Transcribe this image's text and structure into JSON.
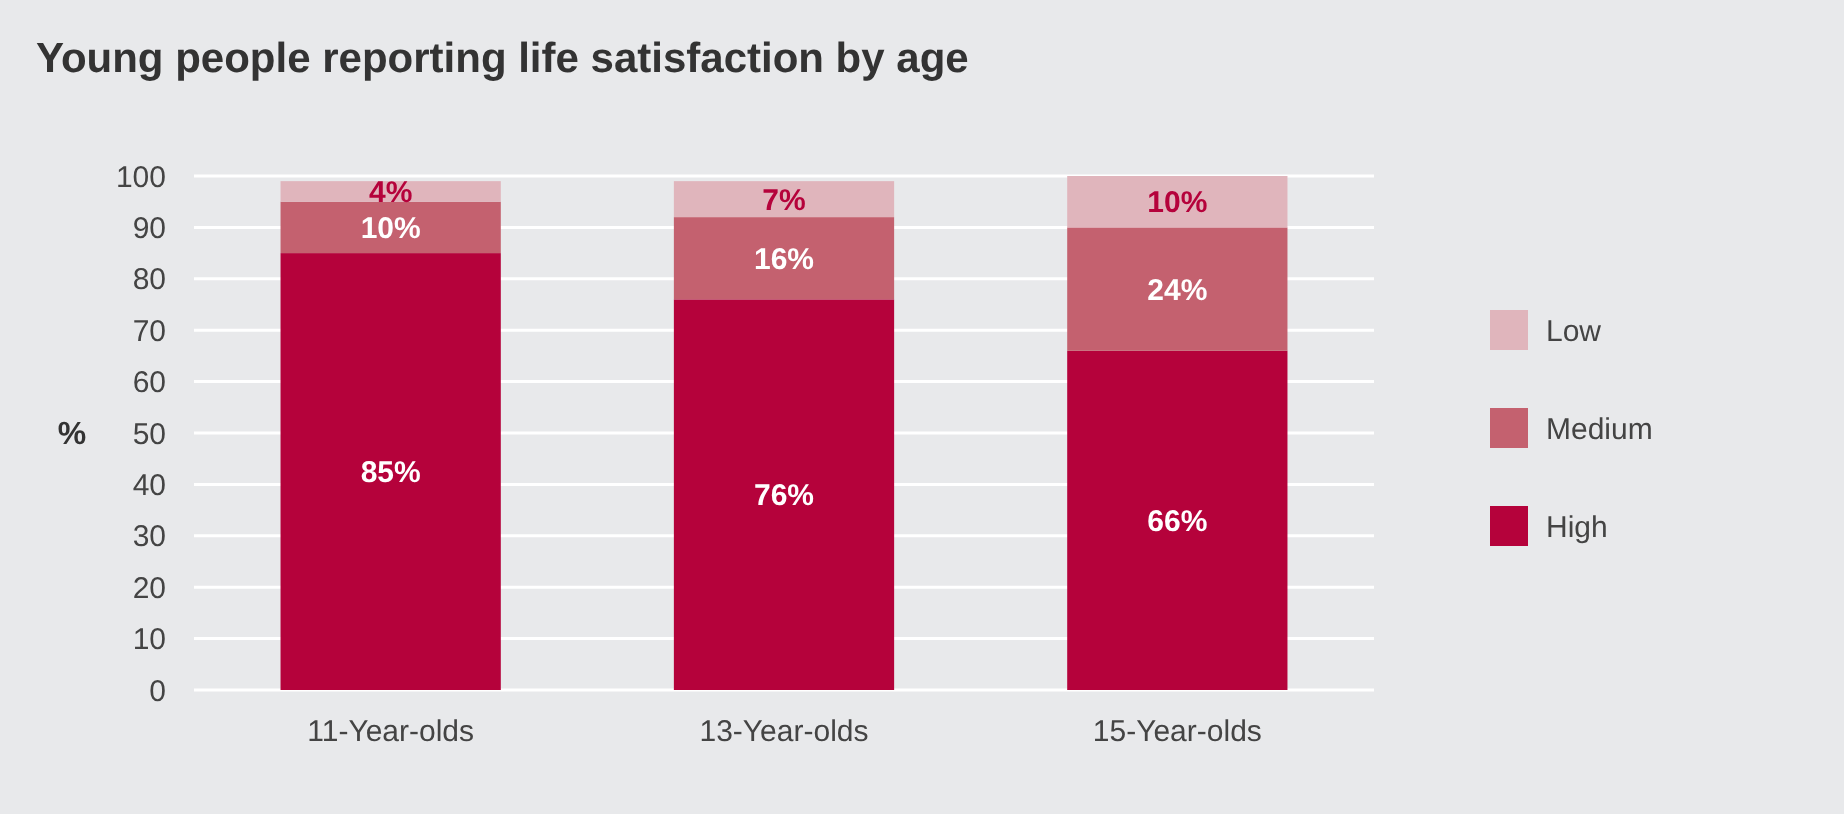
{
  "chart_data": {
    "type": "bar",
    "title": "Young people reporting life satisfaction by age",
    "ylabel": "%",
    "categories": [
      "11-Year-olds",
      "13-Year-olds",
      "15-Year-olds"
    ],
    "stacked": true,
    "series": [
      {
        "name": "High",
        "color": "#b5023b",
        "values": [
          85,
          76,
          66
        ],
        "value_labels": [
          "85%",
          "76%",
          "66%"
        ]
      },
      {
        "name": "Medium",
        "color": "#c4616f",
        "values": [
          10,
          16,
          24
        ],
        "value_labels": [
          "10%",
          "16%",
          "24%"
        ]
      },
      {
        "name": "Low",
        "color": "#e0b5bc",
        "values": [
          4,
          7,
          10
        ],
        "value_labels": [
          "4%",
          "7%",
          "10%"
        ]
      }
    ],
    "ylim": [
      0,
      100
    ],
    "yticks": [
      0,
      10,
      20,
      30,
      40,
      50,
      60,
      70,
      80,
      90,
      100
    ],
    "grid": "y",
    "legend": "right"
  }
}
